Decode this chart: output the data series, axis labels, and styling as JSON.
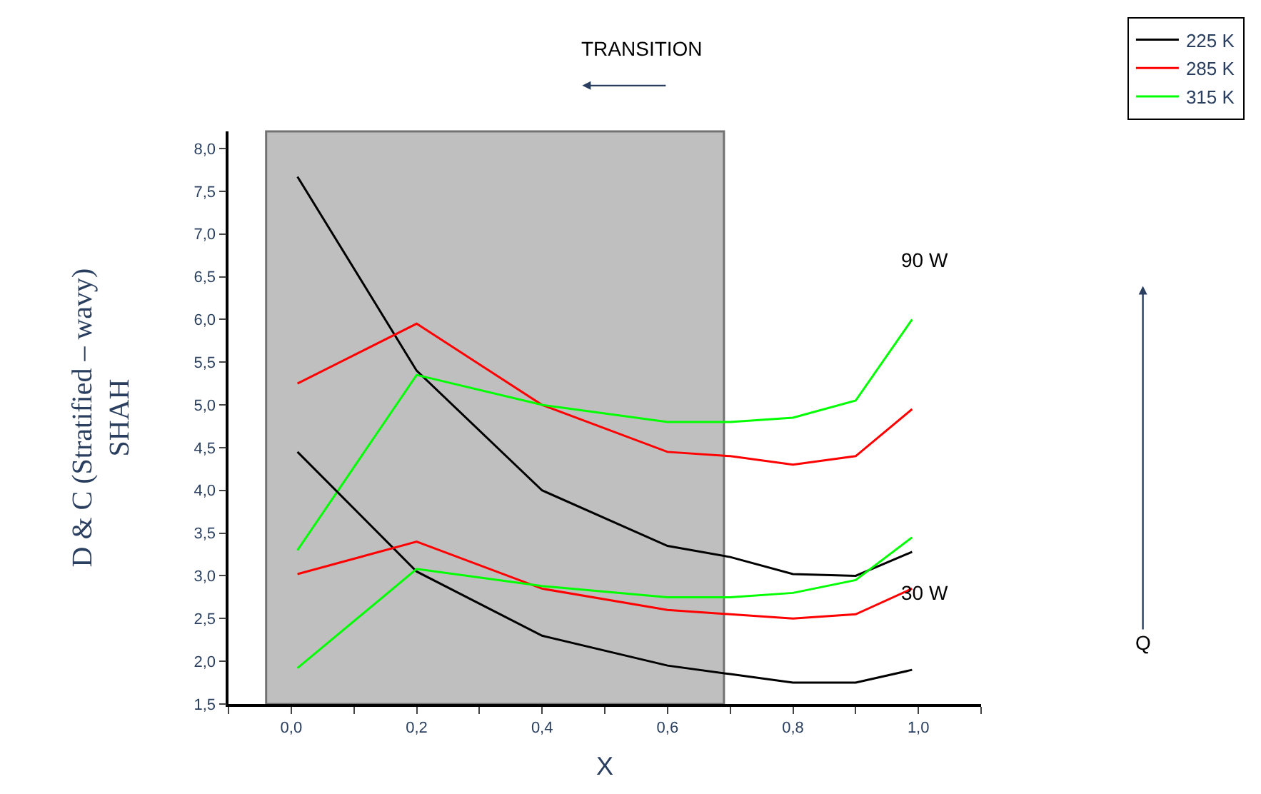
{
  "chart_data": {
    "type": "line",
    "xlabel": "X",
    "ylabel": "D & C (Stratified – wavy)\nSHAH",
    "x": [
      0.01,
      0.2,
      0.4,
      0.6,
      0.7,
      0.8,
      0.9,
      0.99
    ],
    "series": [
      {
        "name": "225 K",
        "color": "#000000",
        "values": [
          7.67,
          5.4,
          4.0,
          3.35,
          3.22,
          3.02,
          3.0,
          3.28
        ]
      },
      {
        "name": "285 K",
        "color": "#ff0000",
        "values": [
          5.25,
          5.95,
          5.0,
          4.45,
          4.4,
          4.3,
          4.4,
          4.95
        ]
      },
      {
        "name": "315 K",
        "color": "#00ff00",
        "values": [
          3.3,
          5.35,
          5.0,
          4.8,
          4.8,
          4.85,
          5.05,
          6.0
        ]
      },
      {
        "color": "#000000",
        "values": [
          4.45,
          3.05,
          2.3,
          1.95,
          1.85,
          1.75,
          1.75,
          1.9
        ]
      },
      {
        "color": "#ff0000",
        "values": [
          3.02,
          3.4,
          2.85,
          2.6,
          2.55,
          2.5,
          2.55,
          2.85
        ]
      },
      {
        "color": "#00ff00",
        "values": [
          1.92,
          3.08,
          2.88,
          2.75,
          2.75,
          2.8,
          2.95,
          3.45
        ]
      }
    ],
    "xlim": [
      -0.1,
      1.1
    ],
    "xticks": [
      {
        "value": -0.1,
        "label": null
      },
      {
        "value": 0.0,
        "label": "0,0"
      },
      {
        "value": 0.1,
        "label": null
      },
      {
        "value": 0.2,
        "label": "0,2"
      },
      {
        "value": 0.3,
        "label": null
      },
      {
        "value": 0.4,
        "label": "0,4"
      },
      {
        "value": 0.5,
        "label": null
      },
      {
        "value": 0.6,
        "label": "0,6"
      },
      {
        "value": 0.7,
        "label": null
      },
      {
        "value": 0.8,
        "label": "0,8"
      },
      {
        "value": 0.9,
        "label": null
      },
      {
        "value": 1.0,
        "label": "1,0"
      },
      {
        "value": 1.1,
        "label": null
      }
    ],
    "ylim": [
      1.5,
      8.2
    ],
    "yticks": [
      {
        "value": 1.5,
        "label": "1,5"
      },
      {
        "value": 2.0,
        "label": "2,0"
      },
      {
        "value": 2.5,
        "label": "2,5"
      },
      {
        "value": 3.0,
        "label": "3,0"
      },
      {
        "value": 3.5,
        "label": "3,5"
      },
      {
        "value": 4.0,
        "label": "4,0"
      },
      {
        "value": 4.5,
        "label": "4,5"
      },
      {
        "value": 5.0,
        "label": "5,0"
      },
      {
        "value": 5.5,
        "label": "5,5"
      },
      {
        "value": 6.0,
        "label": "6,0"
      },
      {
        "value": 6.5,
        "label": "6,5"
      },
      {
        "value": 7.0,
        "label": "7,0"
      },
      {
        "value": 7.5,
        "label": "7,5"
      },
      {
        "value": 8.0,
        "label": "8,0"
      }
    ],
    "bands": [
      {
        "axis": "x",
        "from": -0.04,
        "to": 0.69,
        "color": "#8c8c8c"
      }
    ],
    "annotations": [
      "TRANSITION",
      "Q",
      "90 W",
      "30 W"
    ],
    "grid": false,
    "legend": "top right",
    "line_style": "solid",
    "marker": "none"
  }
}
